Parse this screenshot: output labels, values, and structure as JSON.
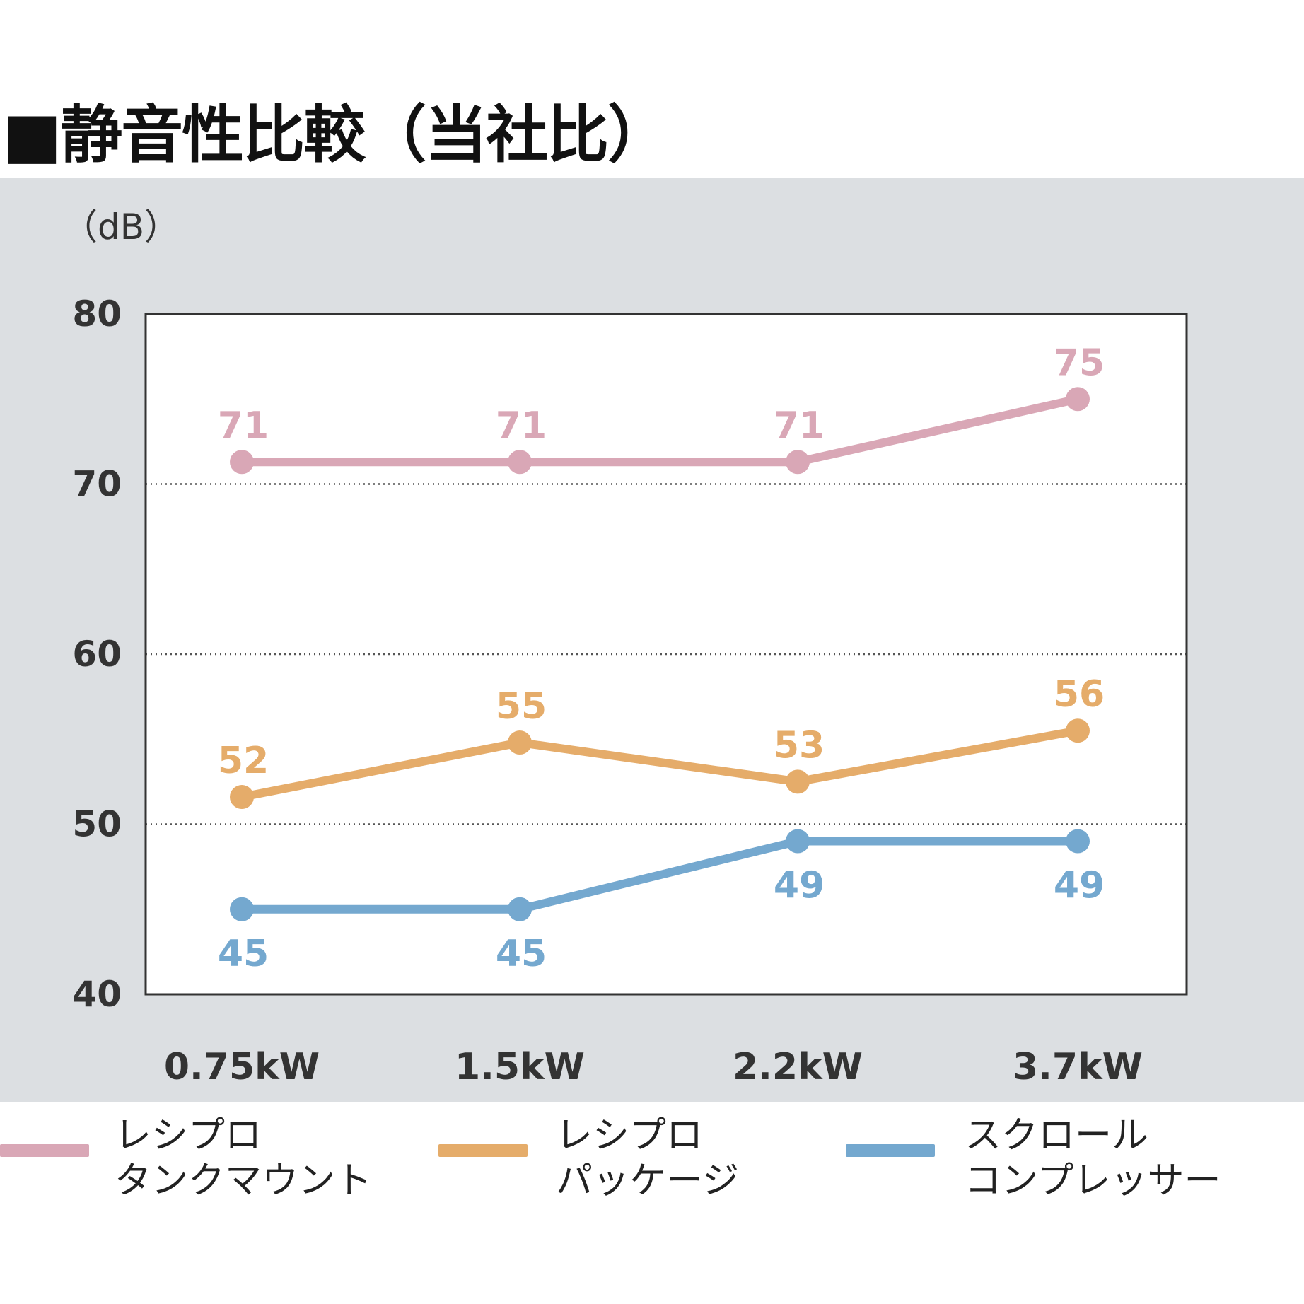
{
  "title": "■静音性比較（当社比）",
  "chart_data": {
    "type": "line",
    "ylabel": "（dB）",
    "categories": [
      "0.75kW",
      "1.5kW",
      "2.2kW",
      "3.7kW"
    ],
    "ylim": [
      40,
      80
    ],
    "yticks": [
      "40",
      "50",
      "60",
      "70",
      "80"
    ],
    "gridlines": [
      50,
      60,
      70
    ],
    "series": [
      {
        "name_lines": [
          "レシプロ",
          "タンクマウント"
        ],
        "color": "#d9a7b6",
        "values": [
          71,
          71,
          71,
          75
        ],
        "plot_values": [
          71.3,
          71.3,
          71.3,
          75.0
        ],
        "labels": [
          "71",
          "71",
          "71",
          "75"
        ],
        "label_position": "above"
      },
      {
        "name_lines": [
          "レシプロ",
          "パッケージ"
        ],
        "color": "#e5ac6a",
        "values": [
          52,
          55,
          53,
          56
        ],
        "plot_values": [
          51.6,
          54.8,
          52.5,
          55.5
        ],
        "labels": [
          "52",
          "55",
          "53",
          "56"
        ],
        "label_position": "above"
      },
      {
        "name_lines": [
          "スクロール",
          "コンプレッサー"
        ],
        "color": "#74a8cf",
        "values": [
          45,
          45,
          49,
          49
        ],
        "plot_values": [
          45.0,
          45.0,
          49.0,
          49.0
        ],
        "labels": [
          "45",
          "45",
          "49",
          "49"
        ],
        "label_position": "below"
      }
    ],
    "colors": {
      "panel": "#dcdfe2",
      "plot": "#ffffff",
      "axis": "#333333",
      "text": "#333333"
    }
  }
}
